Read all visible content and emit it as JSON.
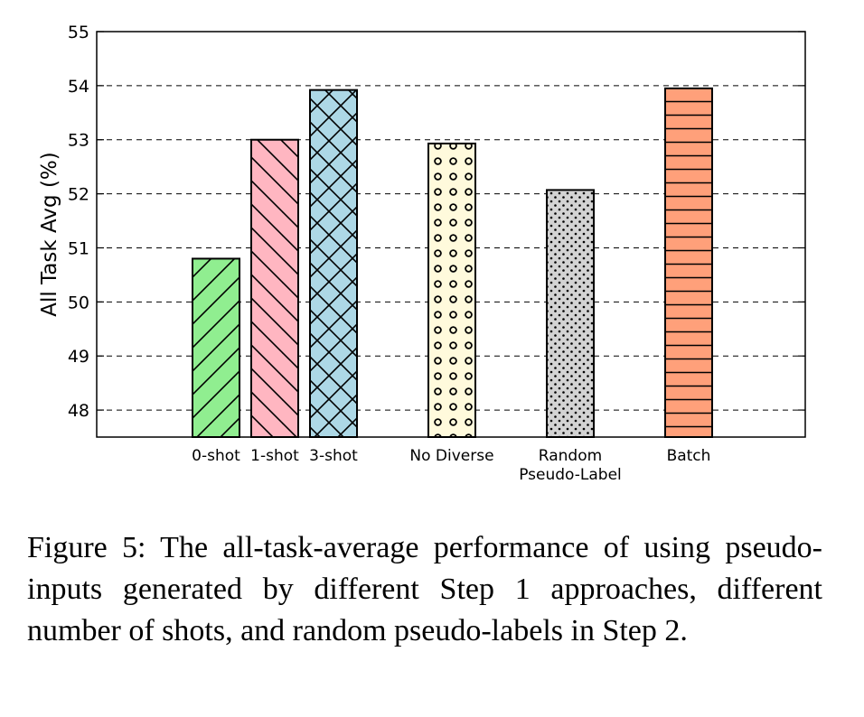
{
  "chart_data": {
    "type": "bar",
    "title": "",
    "xlabel": "",
    "ylabel": "All Task Avg (%)",
    "ylim": [
      47.5,
      55
    ],
    "yticks": [
      48,
      49,
      50,
      51,
      52,
      53,
      54,
      55
    ],
    "grid": "horizontal-dashed",
    "bars": [
      {
        "label": "0-shot",
        "label_lines": [
          "0-shot"
        ],
        "value": 50.8,
        "color": "#90ee90",
        "hatch": "forward-diagonal"
      },
      {
        "label": "1-shot",
        "label_lines": [
          "1-shot"
        ],
        "value": 53.0,
        "color": "#ffb6c1",
        "hatch": "back-diagonal"
      },
      {
        "label": "3-shot",
        "label_lines": [
          "3-shot"
        ],
        "value": 53.92,
        "color": "#add8e6",
        "hatch": "crosshatch"
      },
      {
        "label": "No Diverse",
        "label_lines": [
          "No Diverse"
        ],
        "value": 52.93,
        "color": "#fffadc",
        "hatch": "circles"
      },
      {
        "label": "Random Pseudo-Label",
        "label_lines": [
          "Random",
          "Pseudo-Label"
        ],
        "value": 52.07,
        "color": "#d3d3d3",
        "hatch": "dots"
      },
      {
        "label": "Batch",
        "label_lines": [
          "Batch"
        ],
        "value": 53.95,
        "color": "#ffa07a",
        "hatch": "horizontal"
      }
    ]
  },
  "caption": "Figure 5: The all-task-average performance of using pseudo-inputs generated by different Step 1 approaches, different number of shots, and random pseudo-labels in Step 2."
}
